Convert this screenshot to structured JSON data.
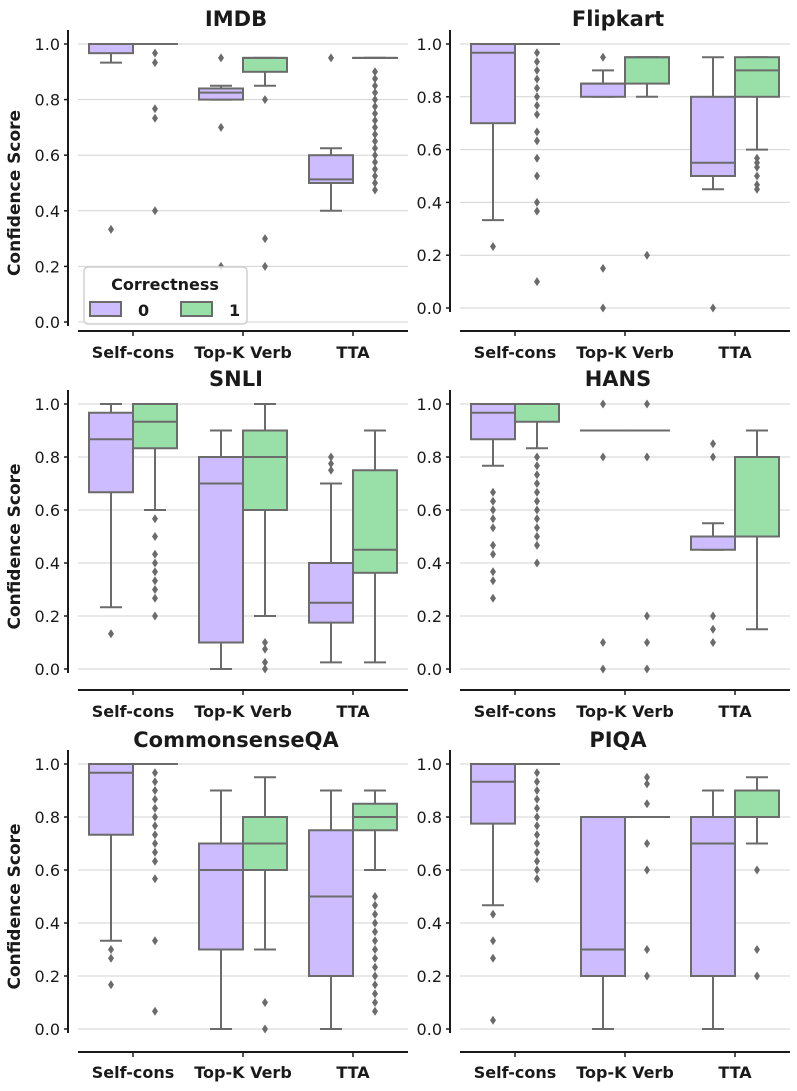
{
  "y_axis_label": "Confidence Score",
  "legend": {
    "title": "Correctness",
    "entries": [
      {
        "label": "0",
        "color": "#cdbcff"
      },
      {
        "label": "1",
        "color": "#98e0a8"
      }
    ]
  },
  "colors": {
    "box_stroke": "#6b6b6b",
    "grid": "#d3d3d3",
    "axis": "#1a1a1a"
  },
  "chart_data": [
    {
      "type": "boxplot",
      "title": "IMDB",
      "ylim": [
        0,
        1.0
      ],
      "yticks": [
        "0.0",
        "0.2",
        "0.4",
        "0.6",
        "0.8",
        "1.0"
      ],
      "categories": [
        "Self-cons",
        "Top-K Verb",
        "TTA"
      ],
      "groups": [
        {
          "category": "Self-cons",
          "correctness": "0",
          "whislo": 0.933,
          "q1": 0.967,
          "med": 1.0,
          "q3": 1.0,
          "whishi": 1.0,
          "fliers": [
            0.333
          ]
        },
        {
          "category": "Self-cons",
          "correctness": "1",
          "whislo": 1.0,
          "q1": 1.0,
          "med": 1.0,
          "q3": 1.0,
          "whishi": 1.0,
          "fliers": [
            0.967,
            0.933,
            0.767,
            0.733,
            0.4
          ]
        },
        {
          "category": "Top-K Verb",
          "correctness": "0",
          "whislo": 0.8,
          "q1": 0.8,
          "med": 0.825,
          "q3": 0.84,
          "whishi": 0.85,
          "fliers": [
            0.95,
            0.7,
            0.2
          ]
        },
        {
          "category": "Top-K Verb",
          "correctness": "1",
          "whislo": 0.85,
          "q1": 0.9,
          "med": 0.95,
          "q3": 0.95,
          "whishi": 0.95,
          "fliers": [
            0.8,
            0.3,
            0.2
          ]
        },
        {
          "category": "TTA",
          "correctness": "0",
          "whislo": 0.4,
          "q1": 0.5,
          "med": 0.513,
          "q3": 0.6,
          "whishi": 0.625,
          "fliers": [
            0.95
          ]
        },
        {
          "category": "TTA",
          "correctness": "1",
          "whislo": 0.95,
          "q1": 0.95,
          "med": 0.95,
          "q3": 0.95,
          "whishi": 0.95,
          "fliers": [
            0.9,
            0.875,
            0.85,
            0.825,
            0.8,
            0.775,
            0.75,
            0.725,
            0.7,
            0.675,
            0.65,
            0.625,
            0.6,
            0.575,
            0.55,
            0.525,
            0.5,
            0.475
          ]
        }
      ]
    },
    {
      "type": "boxplot",
      "title": "Flipkart",
      "ylim": [
        0,
        1.0
      ],
      "yticks": [
        "0.0",
        "0.2",
        "0.4",
        "0.6",
        "0.8",
        "1.0"
      ],
      "categories": [
        "Self-cons",
        "Top-K Verb",
        "TTA"
      ],
      "groups": [
        {
          "category": "Self-cons",
          "correctness": "0",
          "whislo": 0.333,
          "q1": 0.7,
          "med": 0.967,
          "q3": 1.0,
          "whishi": 1.0,
          "fliers": [
            0.233
          ]
        },
        {
          "category": "Self-cons",
          "correctness": "1",
          "whislo": 1.0,
          "q1": 1.0,
          "med": 1.0,
          "q3": 1.0,
          "whishi": 1.0,
          "fliers": [
            0.967,
            0.933,
            0.9,
            0.867,
            0.833,
            0.8,
            0.767,
            0.733,
            0.667,
            0.633,
            0.567,
            0.5,
            0.4,
            0.367,
            0.1
          ]
        },
        {
          "category": "Top-K Verb",
          "correctness": "0",
          "whislo": 0.8,
          "q1": 0.8,
          "med": 0.85,
          "q3": 0.85,
          "whishi": 0.9,
          "fliers": [
            0.95,
            0.15,
            0.0
          ]
        },
        {
          "category": "Top-K Verb",
          "correctness": "1",
          "whislo": 0.8,
          "q1": 0.85,
          "med": 0.95,
          "q3": 0.95,
          "whishi": 0.95,
          "fliers": [
            0.2
          ]
        },
        {
          "category": "TTA",
          "correctness": "0",
          "whislo": 0.45,
          "q1": 0.5,
          "med": 0.55,
          "q3": 0.8,
          "whishi": 0.95,
          "fliers": [
            0.0
          ]
        },
        {
          "category": "TTA",
          "correctness": "1",
          "whislo": 0.6,
          "q1": 0.8,
          "med": 0.9,
          "q3": 0.95,
          "whishi": 0.95,
          "fliers": [
            0.567,
            0.55,
            0.533,
            0.5,
            0.467,
            0.45
          ]
        }
      ]
    },
    {
      "type": "boxplot",
      "title": "SNLI",
      "ylim": [
        0,
        1.0
      ],
      "yticks": [
        "0.0",
        "0.2",
        "0.4",
        "0.6",
        "0.8",
        "1.0"
      ],
      "categories": [
        "Self-cons",
        "Top-K Verb",
        "TTA"
      ],
      "groups": [
        {
          "category": "Self-cons",
          "correctness": "0",
          "whislo": 0.233,
          "q1": 0.667,
          "med": 0.867,
          "q3": 0.967,
          "whishi": 1.0,
          "fliers": [
            0.133
          ]
        },
        {
          "category": "Self-cons",
          "correctness": "1",
          "whislo": 0.6,
          "q1": 0.833,
          "med": 0.933,
          "q3": 1.0,
          "whishi": 1.0,
          "fliers": [
            0.567,
            0.5,
            0.433,
            0.4,
            0.367,
            0.333,
            0.3,
            0.267,
            0.2
          ]
        },
        {
          "category": "Top-K Verb",
          "correctness": "0",
          "whislo": 0.0,
          "q1": 0.1,
          "med": 0.7,
          "q3": 0.8,
          "whishi": 0.9,
          "fliers": []
        },
        {
          "category": "Top-K Verb",
          "correctness": "1",
          "whislo": 0.2,
          "q1": 0.6,
          "med": 0.8,
          "q3": 0.9,
          "whishi": 1.0,
          "fliers": [
            0.1,
            0.075,
            0.025,
            0.0
          ]
        },
        {
          "category": "TTA",
          "correctness": "0",
          "whislo": 0.025,
          "q1": 0.175,
          "med": 0.25,
          "q3": 0.4,
          "whishi": 0.7,
          "fliers": [
            0.8,
            0.775,
            0.75
          ]
        },
        {
          "category": "TTA",
          "correctness": "1",
          "whislo": 0.025,
          "q1": 0.363,
          "med": 0.45,
          "q3": 0.75,
          "whishi": 0.9,
          "fliers": []
        }
      ]
    },
    {
      "type": "boxplot",
      "title": "HANS",
      "ylim": [
        0,
        1.0
      ],
      "yticks": [
        "0.0",
        "0.2",
        "0.4",
        "0.6",
        "0.8",
        "1.0"
      ],
      "categories": [
        "Self-cons",
        "Top-K Verb",
        "TTA"
      ],
      "groups": [
        {
          "category": "Self-cons",
          "correctness": "0",
          "whislo": 0.767,
          "q1": 0.867,
          "med": 0.967,
          "q3": 1.0,
          "whishi": 1.0,
          "fliers": [
            0.667,
            0.633,
            0.6,
            0.567,
            0.533,
            0.467,
            0.433,
            0.367,
            0.333,
            0.267
          ]
        },
        {
          "category": "Self-cons",
          "correctness": "1",
          "whislo": 0.833,
          "q1": 0.933,
          "med": 1.0,
          "q3": 1.0,
          "whishi": 1.0,
          "fliers": [
            0.8,
            0.767,
            0.733,
            0.7,
            0.667,
            0.633,
            0.6,
            0.567,
            0.533,
            0.5,
            0.467,
            0.4
          ]
        },
        {
          "category": "Top-K Verb",
          "correctness": "0",
          "whislo": 0.9,
          "q1": 0.9,
          "med": 0.9,
          "q3": 0.9,
          "whishi": 0.9,
          "fliers": [
            1.0,
            0.8,
            0.1,
            0.0
          ]
        },
        {
          "category": "Top-K Verb",
          "correctness": "1",
          "whislo": 0.9,
          "q1": 0.9,
          "med": 0.9,
          "q3": 0.9,
          "whishi": 0.9,
          "fliers": [
            1.0,
            0.8,
            0.2,
            0.1,
            0.0
          ]
        },
        {
          "category": "TTA",
          "correctness": "0",
          "whislo": 0.45,
          "q1": 0.45,
          "med": 0.5,
          "q3": 0.5,
          "whishi": 0.55,
          "fliers": [
            0.85,
            0.8,
            0.2,
            0.15,
            0.1
          ]
        },
        {
          "category": "TTA",
          "correctness": "1",
          "whislo": 0.15,
          "q1": 0.5,
          "med": 0.8,
          "q3": 0.8,
          "whishi": 0.9,
          "fliers": []
        }
      ]
    },
    {
      "type": "boxplot",
      "title": "CommonsenseQA",
      "ylim": [
        0,
        1.0
      ],
      "yticks": [
        "0.0",
        "0.2",
        "0.4",
        "0.6",
        "0.8",
        "1.0"
      ],
      "categories": [
        "Self-cons",
        "Top-K Verb",
        "TTA"
      ],
      "groups": [
        {
          "category": "Self-cons",
          "correctness": "0",
          "whislo": 0.333,
          "q1": 0.733,
          "med": 0.967,
          "q3": 1.0,
          "whishi": 1.0,
          "fliers": [
            0.3,
            0.267,
            0.167
          ]
        },
        {
          "category": "Self-cons",
          "correctness": "1",
          "whislo": 1.0,
          "q1": 1.0,
          "med": 1.0,
          "q3": 1.0,
          "whishi": 1.0,
          "fliers": [
            0.967,
            0.933,
            0.9,
            0.867,
            0.833,
            0.8,
            0.767,
            0.733,
            0.7,
            0.667,
            0.633,
            0.567,
            0.333,
            0.067
          ]
        },
        {
          "category": "Top-K Verb",
          "correctness": "0",
          "whislo": 0.0,
          "q1": 0.3,
          "med": 0.6,
          "q3": 0.7,
          "whishi": 0.9,
          "fliers": []
        },
        {
          "category": "Top-K Verb",
          "correctness": "1",
          "whislo": 0.3,
          "q1": 0.6,
          "med": 0.7,
          "q3": 0.8,
          "whishi": 0.95,
          "fliers": [
            0.1,
            0.0
          ]
        },
        {
          "category": "TTA",
          "correctness": "0",
          "whislo": 0.0,
          "q1": 0.2,
          "med": 0.5,
          "q3": 0.75,
          "whishi": 0.9,
          "fliers": []
        },
        {
          "category": "TTA",
          "correctness": "1",
          "whislo": 0.6,
          "q1": 0.75,
          "med": 0.8,
          "q3": 0.85,
          "whishi": 0.9,
          "fliers": [
            0.5,
            0.467,
            0.433,
            0.4,
            0.367,
            0.333,
            0.3,
            0.267,
            0.233,
            0.2,
            0.167,
            0.133,
            0.1,
            0.067
          ]
        }
      ]
    },
    {
      "type": "boxplot",
      "title": "PIQA",
      "ylim": [
        0,
        1.0
      ],
      "yticks": [
        "0.0",
        "0.2",
        "0.4",
        "0.6",
        "0.8",
        "1.0"
      ],
      "categories": [
        "Self-cons",
        "Top-K Verb",
        "TTA"
      ],
      "groups": [
        {
          "category": "Self-cons",
          "correctness": "0",
          "whislo": 0.467,
          "q1": 0.775,
          "med": 0.933,
          "q3": 1.0,
          "whishi": 1.0,
          "fliers": [
            0.433,
            0.333,
            0.267,
            0.033
          ]
        },
        {
          "category": "Self-cons",
          "correctness": "1",
          "whislo": 1.0,
          "q1": 1.0,
          "med": 1.0,
          "q3": 1.0,
          "whishi": 1.0,
          "fliers": [
            0.967,
            0.933,
            0.9,
            0.867,
            0.833,
            0.8,
            0.767,
            0.733,
            0.7,
            0.667,
            0.633,
            0.6,
            0.567
          ]
        },
        {
          "category": "Top-K Verb",
          "correctness": "0",
          "whislo": 0.0,
          "q1": 0.2,
          "med": 0.3,
          "q3": 0.8,
          "whishi": 0.8,
          "fliers": []
        },
        {
          "category": "Top-K Verb",
          "correctness": "1",
          "whislo": 0.8,
          "q1": 0.8,
          "med": 0.8,
          "q3": 0.8,
          "whishi": 0.8,
          "fliers": [
            0.95,
            0.925,
            0.85,
            0.7,
            0.6,
            0.3,
            0.2
          ]
        },
        {
          "category": "TTA",
          "correctness": "0",
          "whislo": 0.0,
          "q1": 0.2,
          "med": 0.7,
          "q3": 0.8,
          "whishi": 0.9,
          "fliers": []
        },
        {
          "category": "TTA",
          "correctness": "1",
          "whislo": 0.7,
          "q1": 0.8,
          "med": 0.9,
          "q3": 0.9,
          "whishi": 0.95,
          "fliers": [
            0.6,
            0.3,
            0.2
          ]
        }
      ]
    }
  ]
}
